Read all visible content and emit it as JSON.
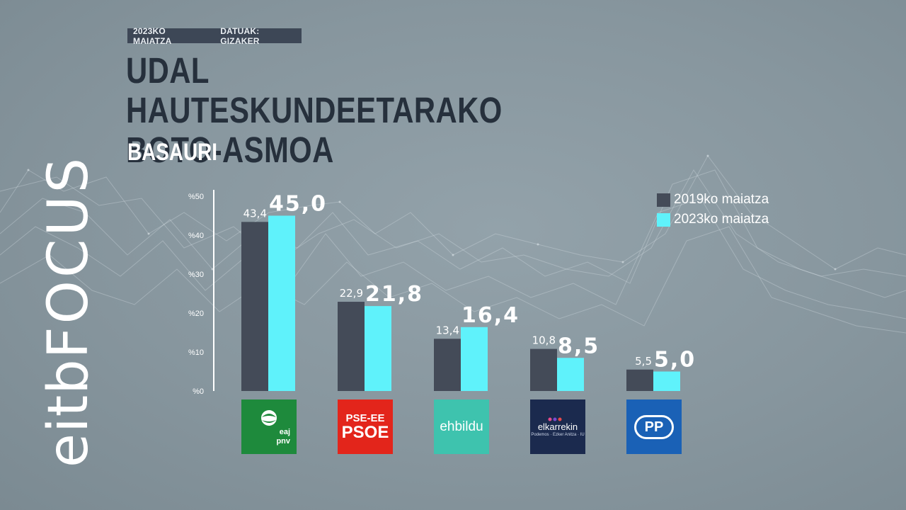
{
  "header": {
    "date": "2023KO MAIATZA",
    "source": "DATUAK: GIZAKER",
    "title_line1": "UDAL HAUTESKUNDEETARAKO",
    "title_line2": "BOTO-ASMOA",
    "subtitle": "BASAURI"
  },
  "brand": {
    "part1": "eitb",
    "part2": "FOCUS"
  },
  "logos": {
    "pnv": {
      "line1": "eaj",
      "line2": "pnv"
    },
    "psoe": {
      "line1": "PSE-EE",
      "line2": "PSOE"
    },
    "ehbildu": {
      "text": "ehbildu"
    },
    "elkarrekin": {
      "text": "elkarrekin",
      "small": "Podemos · Ezker Anitza · IU"
    },
    "pp": {
      "text": "PP"
    }
  },
  "colors": {
    "series_2019": "#444b58",
    "series_2023": "#5ff2fb",
    "axis": "#ffffff",
    "text_dark": "#26303c"
  },
  "chart_data": {
    "type": "bar",
    "categories": [
      "EAJ-PNV",
      "PSE-EE PSOE",
      "EH Bildu",
      "Elkarrekin",
      "PP"
    ],
    "series": [
      {
        "name": "2019ko maiatza",
        "values": [
          43.4,
          22.9,
          13.4,
          10.8,
          5.5
        ],
        "labels": [
          "43,4",
          "22,9",
          "13,4",
          "10,8",
          "5,5"
        ]
      },
      {
        "name": "2023ko maiatza",
        "values": [
          45.0,
          21.8,
          16.4,
          8.5,
          5.0
        ],
        "labels": [
          "45,0",
          "21,8",
          "16,4",
          "8,5",
          "5,0"
        ]
      }
    ],
    "yticks": [
      0,
      10,
      20,
      30,
      40,
      50
    ],
    "ytick_labels": [
      "%0",
      "%10",
      "%20",
      "%30",
      "%40",
      "%50"
    ],
    "ylim": [
      0,
      50
    ],
    "legend_position": "top-right",
    "grid": false
  }
}
